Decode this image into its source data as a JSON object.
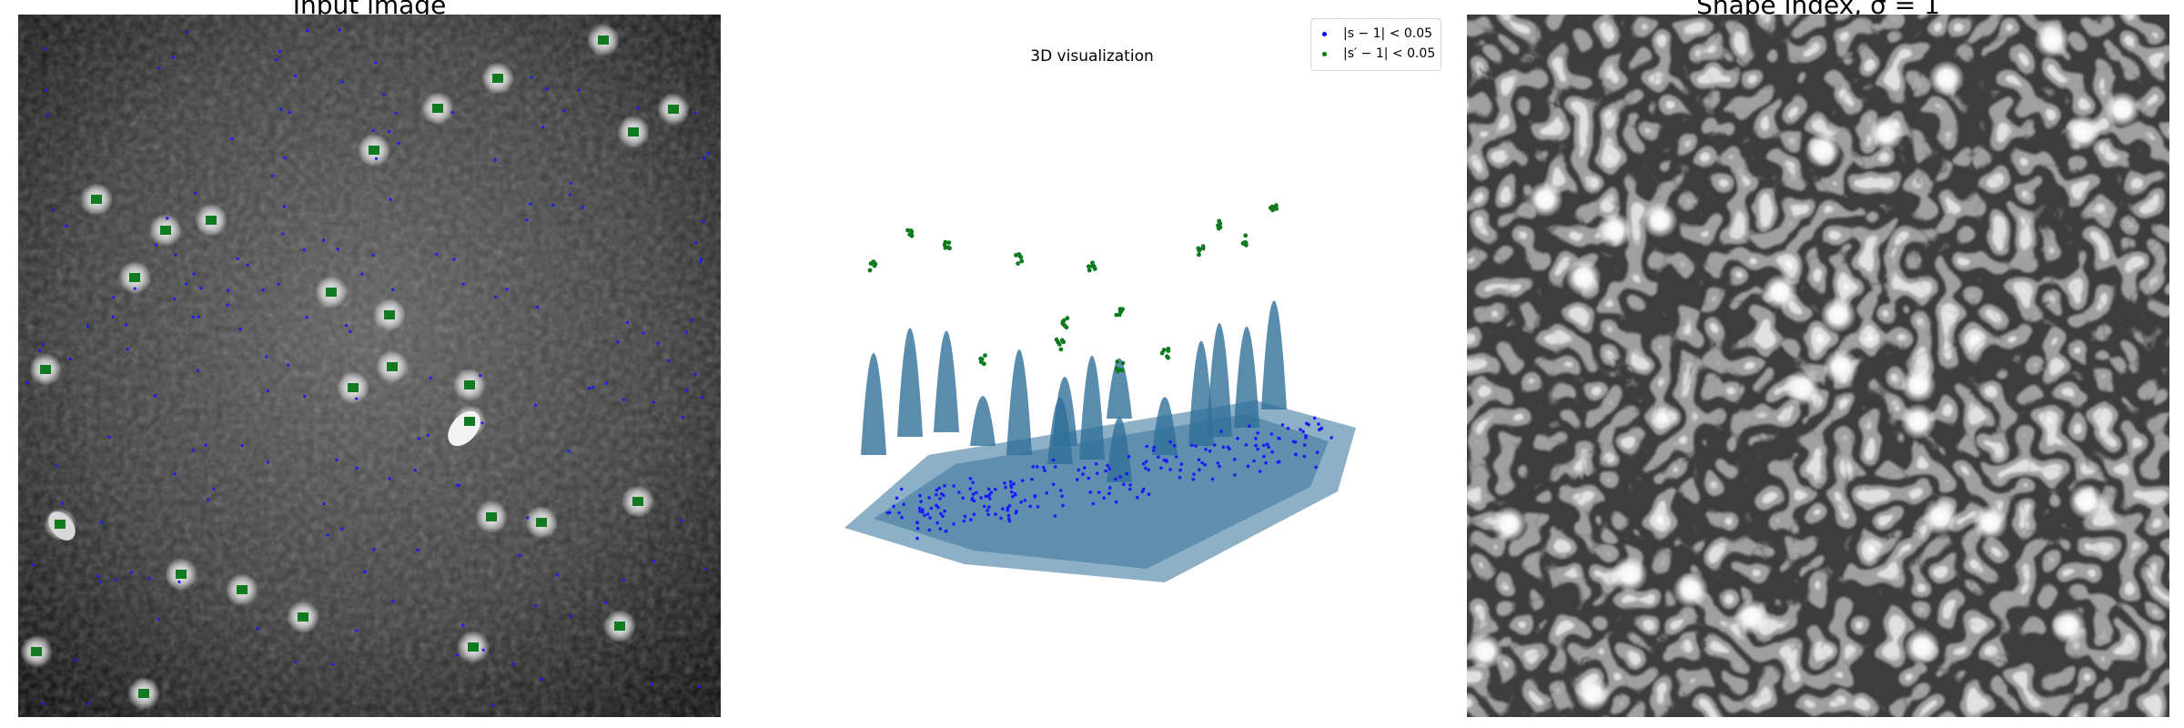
{
  "panels": {
    "left_title": "Input image",
    "middle_title": "3D visualization",
    "right_title": "Shape index, σ = 1"
  },
  "legend": {
    "items": [
      {
        "label": "|s − 1| < 0.05",
        "color": "#0000ff"
      },
      {
        "label": "|s′ − 1| < 0.05",
        "color": "#008000"
      }
    ]
  },
  "colors": {
    "surface": "#2f6f99",
    "blue_points": "#0000ff",
    "green_points": "#0f7a1f"
  }
}
